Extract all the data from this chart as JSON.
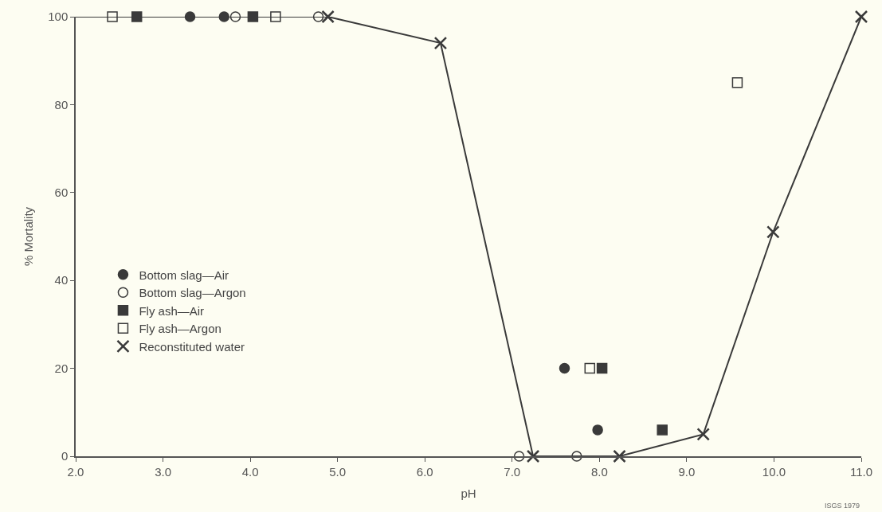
{
  "chart_data": {
    "type": "scatter",
    "xlabel": "pH",
    "ylabel": "% Mortality",
    "xlim": [
      2.0,
      11.0
    ],
    "ylim": [
      0,
      100
    ],
    "xticks": [
      {
        "value": 2,
        "label": "2.0"
      },
      {
        "value": 3,
        "label": "3.0"
      },
      {
        "value": 4,
        "label": "4.0"
      },
      {
        "value": 5,
        "label": "5.0"
      },
      {
        "value": 6,
        "label": "6.0"
      },
      {
        "value": 7,
        "label": "7.0"
      },
      {
        "value": 8,
        "label": "8.0"
      },
      {
        "value": 9,
        "label": "9.0"
      },
      {
        "value": 10,
        "label": "10.0"
      },
      {
        "value": 11,
        "label": "11.0"
      }
    ],
    "yticks": [
      0,
      20,
      40,
      60,
      80,
      100
    ],
    "grid": false,
    "legend": "bottom left",
    "annotations": [
      "ISGS 1979"
    ],
    "series": [
      {
        "type": "line",
        "color": "#3a3a3a",
        "marker": "none",
        "line_style": "solid",
        "x": [
          2.0,
          4.89,
          6.18,
          7.24,
          8.23,
          9.19,
          9.99,
          11.0
        ],
        "values": [
          100,
          100,
          94,
          0,
          0,
          5,
          51,
          100
        ]
      },
      {
        "name": "Bottom slag—Air",
        "color": "#3a3a3a",
        "marker": "circle",
        "x": [
          3.31,
          3.7,
          7.6,
          7.98
        ],
        "values": [
          100,
          100,
          20,
          6
        ]
      },
      {
        "name": "Bottom slag—Argon",
        "color": "#3a3a3a",
        "marker": "circle-open",
        "x": [
          3.83,
          4.78,
          7.08,
          7.74
        ],
        "values": [
          100,
          100,
          0,
          0
        ]
      },
      {
        "name": "Fly ash—Air",
        "color": "#3a3a3a",
        "marker": "square",
        "x": [
          2.7,
          4.03,
          8.03,
          8.72
        ],
        "values": [
          100,
          100,
          20,
          6
        ]
      },
      {
        "name": "Fly ash—Argon",
        "color": "#3a3a3a",
        "marker": "square-open",
        "x": [
          2.42,
          4.29,
          7.89,
          9.58
        ],
        "values": [
          100,
          100,
          20,
          85
        ]
      },
      {
        "name": "Reconstituted water",
        "color": "#3a3a3a",
        "marker": "cross",
        "x": [
          4.89,
          6.18,
          7.24,
          8.23,
          9.19,
          9.99,
          11.0
        ],
        "values": [
          100,
          94,
          0,
          0,
          5,
          51,
          100
        ]
      }
    ]
  }
}
